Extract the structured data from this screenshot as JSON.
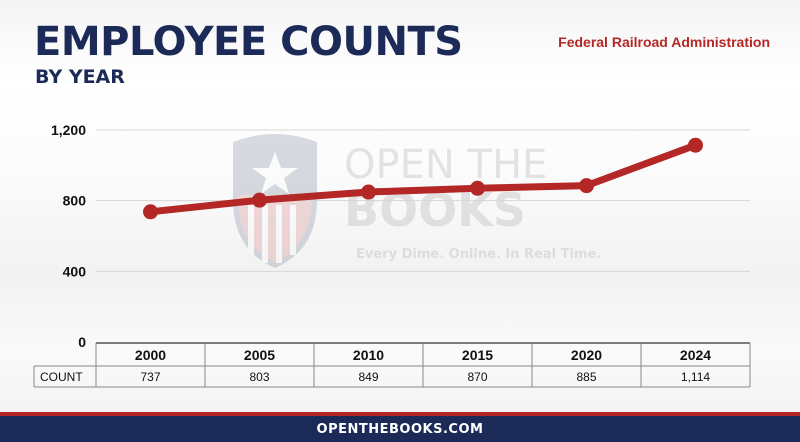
{
  "header": {
    "title": "EMPLOYEE COUNTS",
    "subtitle": "BY YEAR",
    "source": "Federal Railroad Administration"
  },
  "watermark": {
    "line1": "OPEN THE",
    "line2": "BOOKS",
    "tagline": "Every Dime. Online. In Real Time."
  },
  "footer": {
    "label": "OPENTHEBOOKS.COM"
  },
  "chart_data": {
    "type": "line",
    "categories": [
      "2000",
      "2005",
      "2010",
      "2015",
      "2020",
      "2024"
    ],
    "values": [
      737,
      803,
      849,
      870,
      885,
      1114
    ],
    "value_labels": [
      "737",
      "803",
      "849",
      "870",
      "885",
      "1,114"
    ],
    "table_row_label": "COUNT",
    "yticks": [
      0,
      400,
      800,
      1200
    ],
    "ytick_labels": [
      "0",
      "400",
      "800",
      "1,200"
    ],
    "ylim": [
      0,
      1200
    ],
    "grid": true,
    "line_color": "#b32826",
    "brand_color": "#1b2a57"
  }
}
